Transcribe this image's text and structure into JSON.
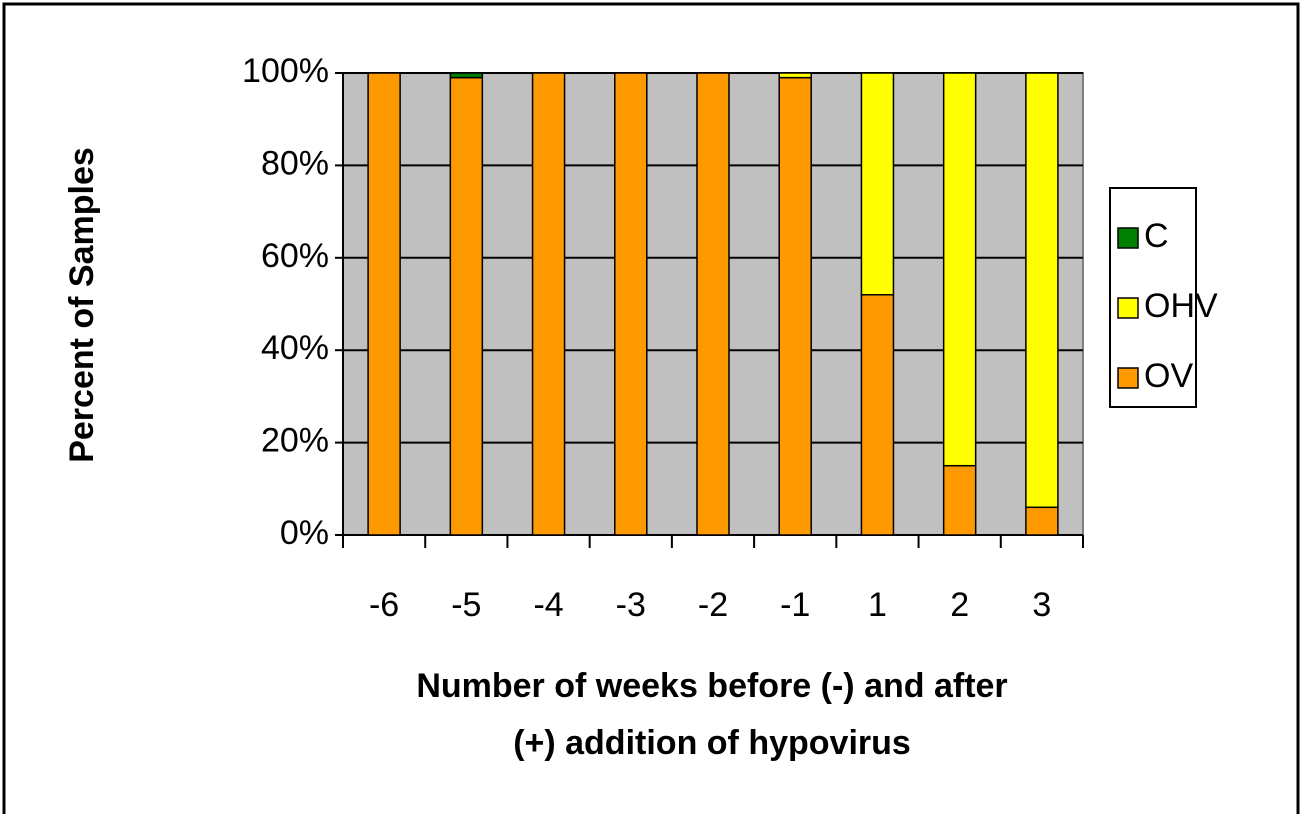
{
  "chart_data": {
    "type": "stacked_bar",
    "x_label": [
      "Number of weeks before (-) and after",
      "(+) addition of hypovirus"
    ],
    "y_label": "Percent of Samples",
    "categories": [
      "-6",
      "-5",
      "-4",
      "-3",
      "-2",
      "-1",
      "1",
      "2",
      "3"
    ],
    "series": [
      {
        "name": "OV",
        "color": "#ff9900",
        "values": [
          100,
          99,
          100,
          100,
          100,
          99,
          52,
          15,
          6
        ]
      },
      {
        "name": "OHV",
        "color": "#ffff00",
        "values": [
          0,
          0,
          0,
          0,
          0,
          1,
          48,
          85,
          94
        ]
      },
      {
        "name": "C",
        "color": "#008000",
        "values": [
          0,
          1,
          0,
          0,
          0,
          0,
          0,
          0,
          0
        ]
      }
    ],
    "ylim": [
      0,
      100
    ],
    "yticks": [
      {
        "value": 0,
        "label": "0%"
      },
      {
        "value": 20,
        "label": "20%"
      },
      {
        "value": 40,
        "label": "40%"
      },
      {
        "value": 60,
        "label": "60%"
      },
      {
        "value": 80,
        "label": "80%"
      },
      {
        "value": 100,
        "label": "100%"
      }
    ],
    "grid": true,
    "legend": "right"
  }
}
